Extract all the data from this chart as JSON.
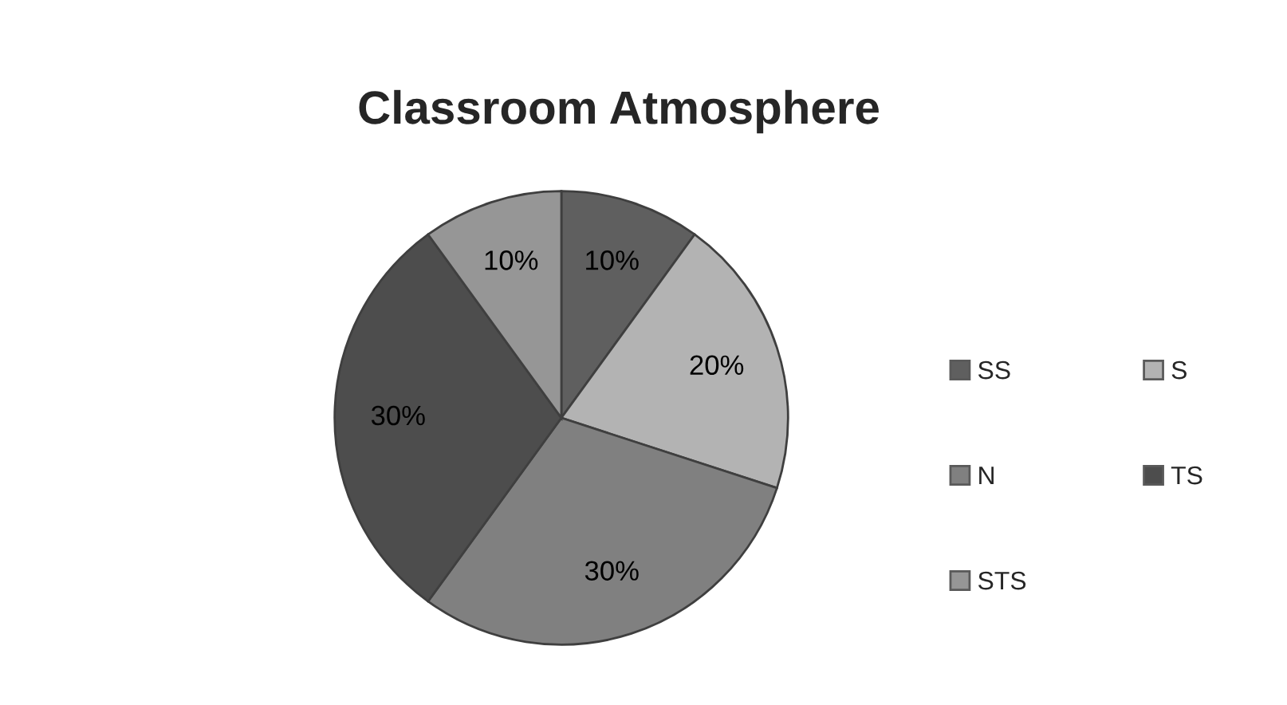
{
  "chart_data": {
    "type": "pie",
    "title": "Classroom Atmosphere",
    "categories": [
      "SS",
      "S",
      "N",
      "TS",
      "STS"
    ],
    "values": [
      10,
      20,
      30,
      30,
      10
    ],
    "colors": [
      "#5f5f5f",
      "#b3b3b3",
      "#808080",
      "#4d4d4d",
      "#969696"
    ],
    "value_labels": [
      "10%",
      "20%",
      "30%",
      "30%",
      "10%"
    ],
    "legend": "right"
  }
}
